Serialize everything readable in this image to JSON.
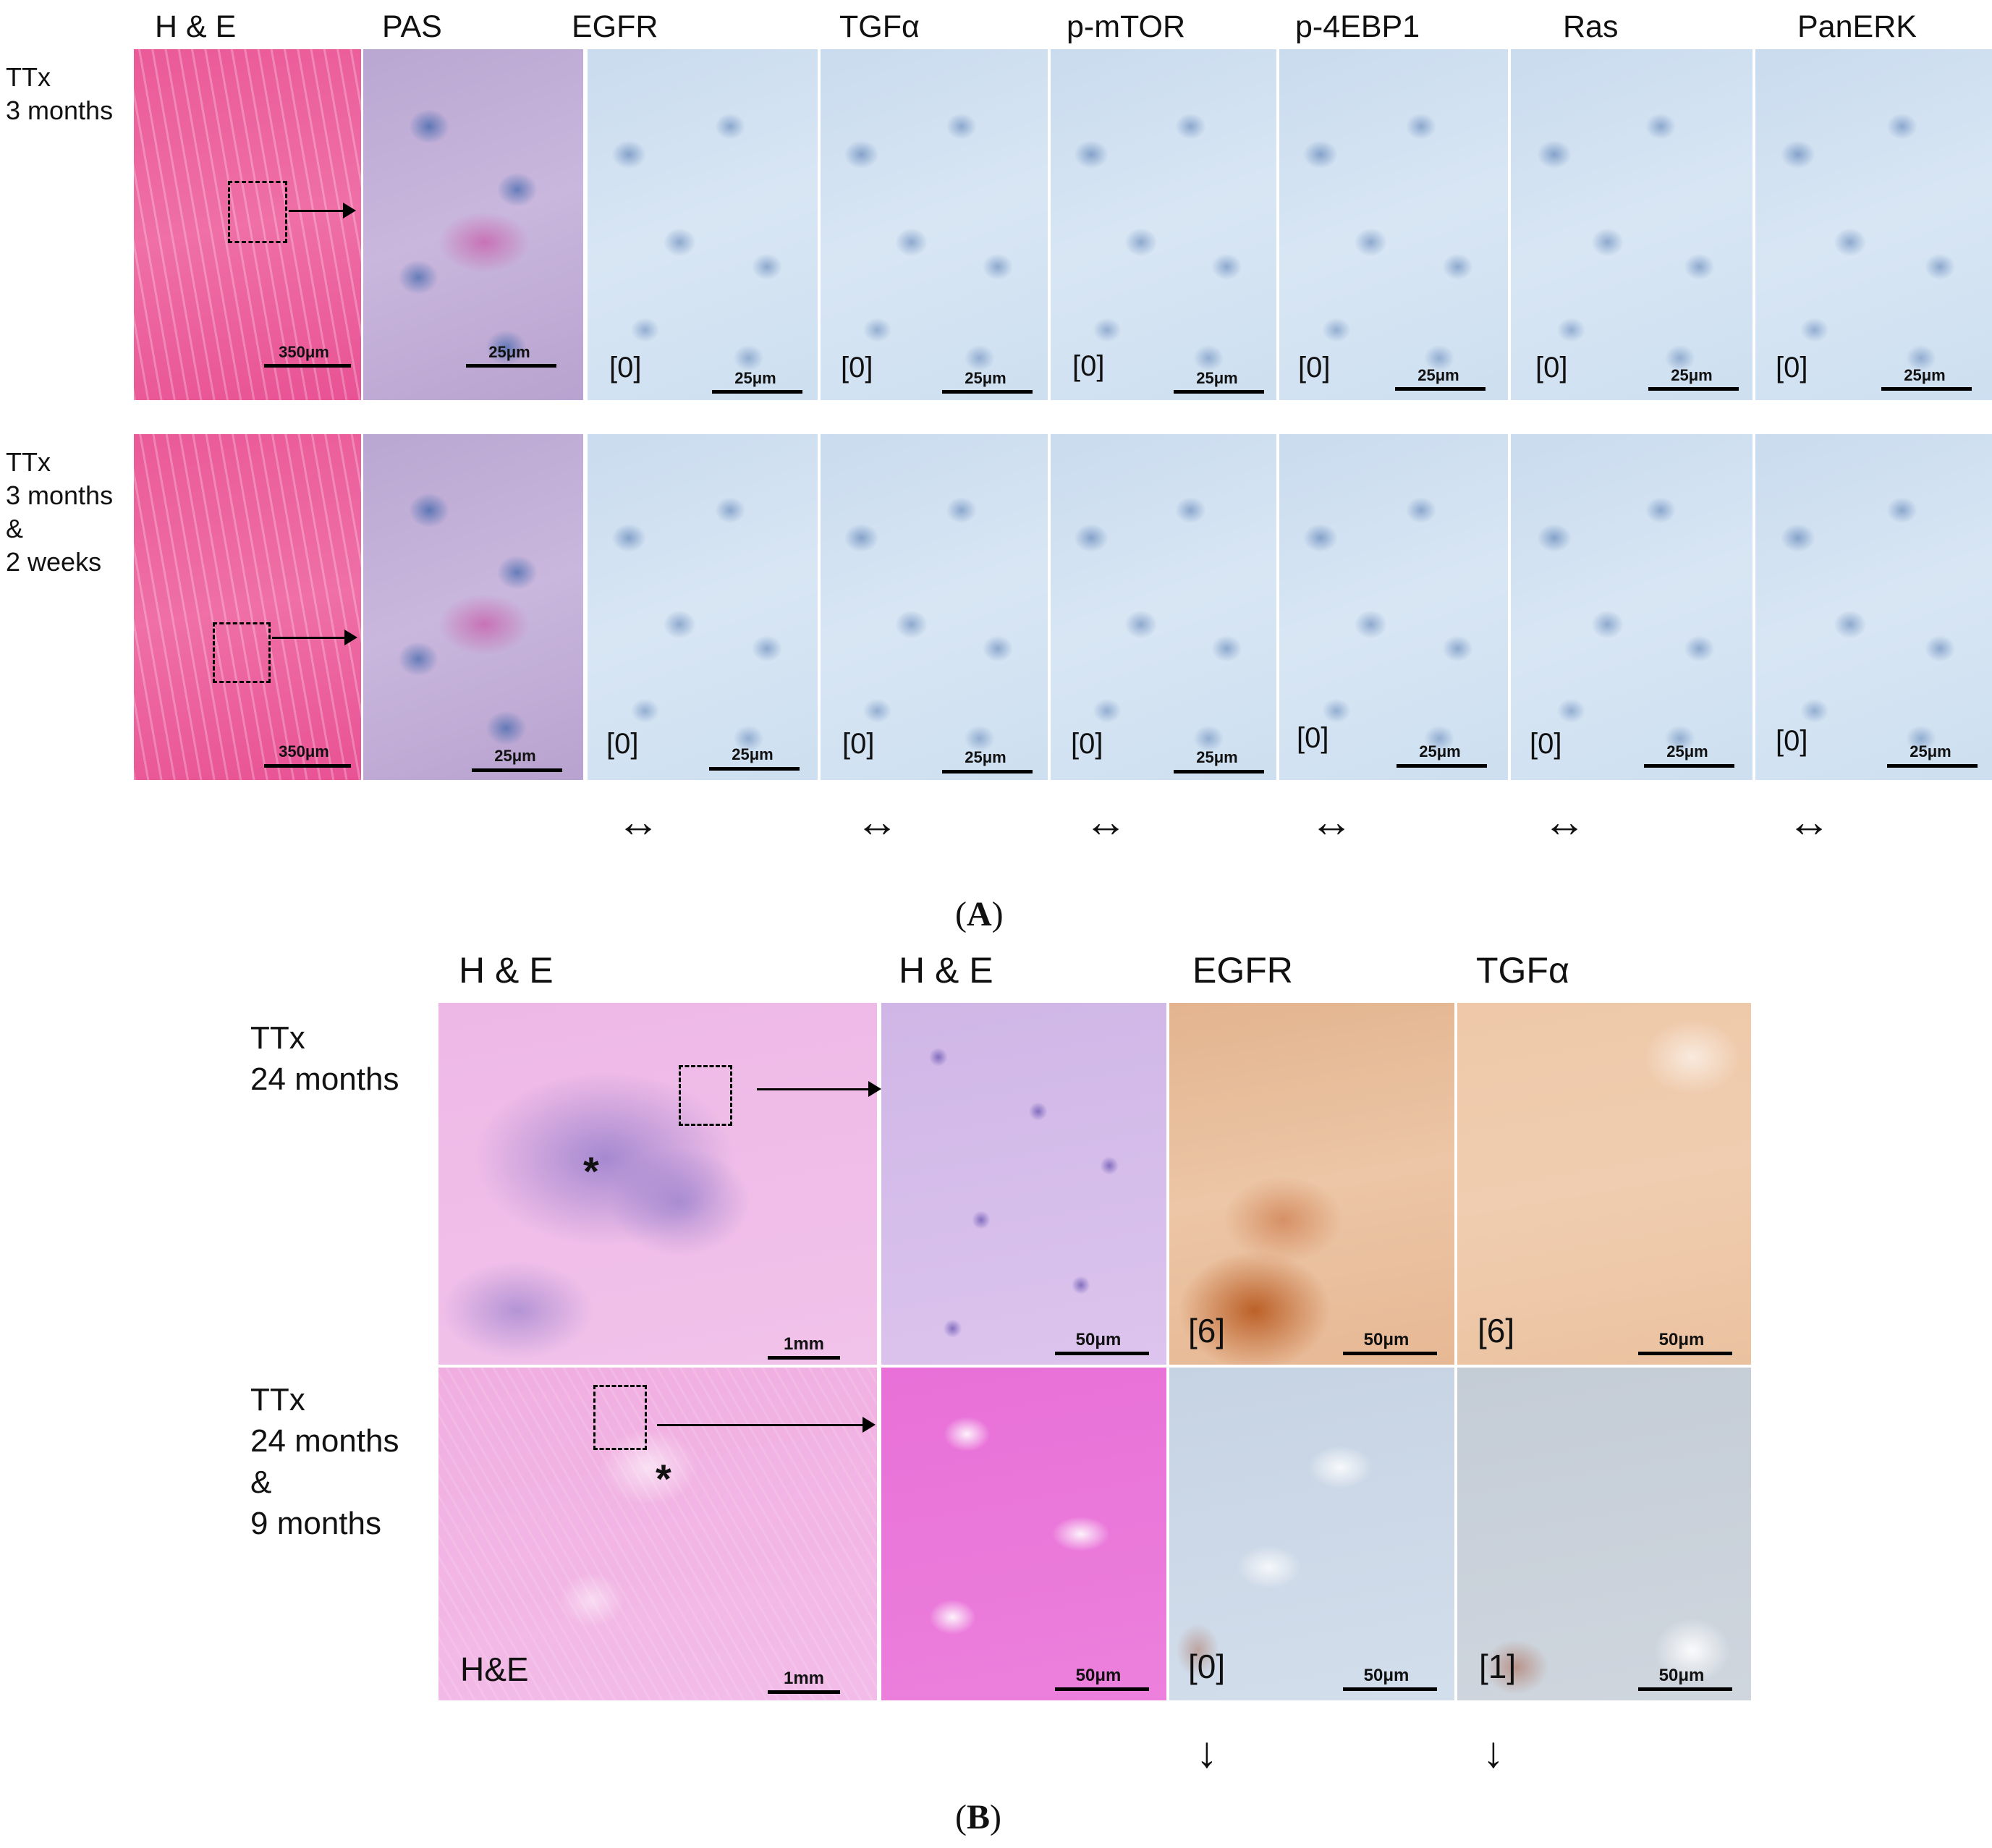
{
  "panel_a": {
    "column_headers": [
      "H & E",
      "PAS",
      "EGFR",
      "TGFα",
      "p-mTOR",
      "p-4EBP1",
      "Ras",
      "PanERK"
    ],
    "rows": [
      {
        "label_lines": [
          "TTx",
          "3 months"
        ],
        "he_scale": "350μm",
        "pas_scale": "25μm",
        "markers": [
          {
            "score": "[0]",
            "scale": "25μm"
          },
          {
            "score": "[0]",
            "scale": "25μm"
          },
          {
            "score": "[0]",
            "scale": "25μm"
          },
          {
            "score": "[0]",
            "scale": "25μm"
          },
          {
            "score": "[0]",
            "scale": "25μm"
          },
          {
            "score": "[0]",
            "scale": "25μm"
          }
        ]
      },
      {
        "label_lines": [
          "TTx",
          "3 months",
          "&",
          "2 weeks"
        ],
        "he_scale": "350μm",
        "pas_scale": "25μm",
        "markers": [
          {
            "score": "[0]",
            "scale": "25μm"
          },
          {
            "score": "[0]",
            "scale": "25μm"
          },
          {
            "score": "[0]",
            "scale": "25μm"
          },
          {
            "score": "[0]",
            "scale": "25μm"
          },
          {
            "score": "[0]",
            "scale": "25μm"
          },
          {
            "score": "[0]",
            "scale": "25μm"
          }
        ]
      }
    ],
    "change_symbols": [
      "↔",
      "↔",
      "↔",
      "↔",
      "↔",
      "↔"
    ],
    "figure_label": {
      "open": "(",
      "letter": "A",
      "close": ")"
    }
  },
  "panel_b": {
    "column_headers": [
      "H & E",
      "H & E",
      "EGFR",
      "TGFα"
    ],
    "rows": [
      {
        "label_lines": [
          "TTx",
          "24 months"
        ],
        "wide_scale": "1mm",
        "zoom_scale": "50μm",
        "markers": [
          {
            "score": "[6]",
            "scale": "50μm"
          },
          {
            "score": "[6]",
            "scale": "50μm"
          }
        ]
      },
      {
        "label_lines": [
          "TTx",
          "24 months",
          "&",
          "9 months"
        ],
        "wide_scale": "1mm",
        "wide_inset_label": "H&E",
        "zoom_scale": "50μm",
        "markers": [
          {
            "score": "[0]",
            "scale": "50μm"
          },
          {
            "score": "[1]",
            "scale": "50μm"
          }
        ]
      }
    ],
    "change_symbols": [
      "↓",
      "↓"
    ],
    "asterisk": "*",
    "figure_label": {
      "open": "(",
      "letter": "B",
      "close": ")"
    }
  }
}
